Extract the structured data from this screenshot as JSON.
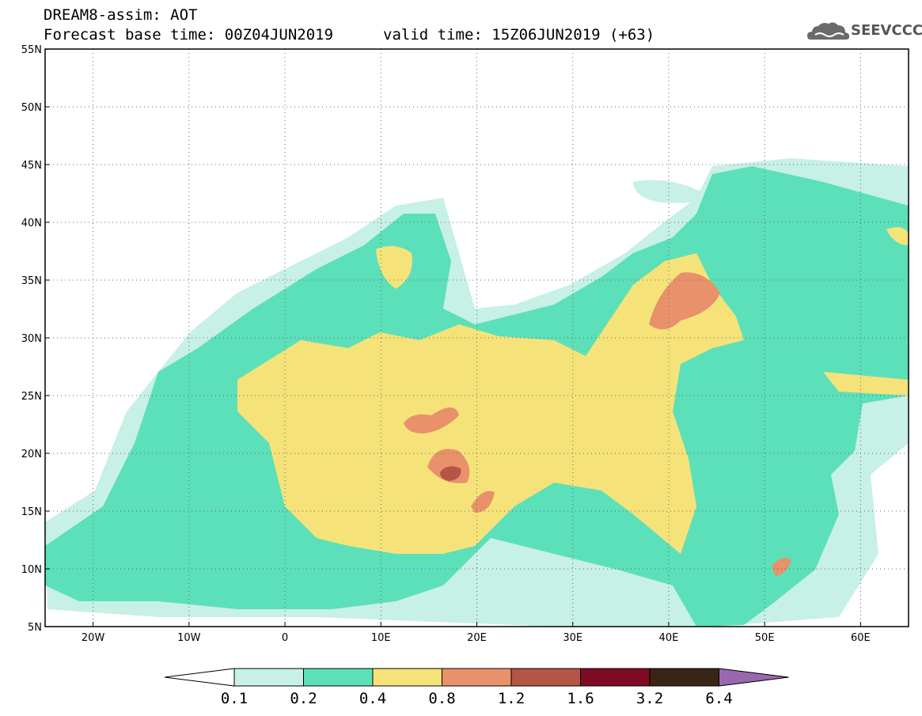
{
  "header": {
    "line1": "DREAM8-assim: AOT",
    "base_time": "Forecast base time: 00Z04JUN2019",
    "valid_time": "valid time: 15Z06JUN2019 (+63)"
  },
  "logo": {
    "text": "SEEVCCC",
    "icon": "cloud-icon"
  },
  "map": {
    "lon_range": [
      -25,
      65
    ],
    "lat_range": [
      5,
      55
    ],
    "lat_ticks": [
      {
        "value": 55,
        "label": "55N"
      },
      {
        "value": 50,
        "label": "50N"
      },
      {
        "value": 45,
        "label": "45N"
      },
      {
        "value": 40,
        "label": "40N"
      },
      {
        "value": 35,
        "label": "35N"
      },
      {
        "value": 30,
        "label": "30N"
      },
      {
        "value": 25,
        "label": "25N"
      },
      {
        "value": 20,
        "label": "20N"
      },
      {
        "value": 15,
        "label": "15N"
      },
      {
        "value": 10,
        "label": "10N"
      },
      {
        "value": 5,
        "label": "5N"
      }
    ],
    "lon_ticks": [
      {
        "value": -20,
        "label": "20W"
      },
      {
        "value": -10,
        "label": "10W"
      },
      {
        "value": 0,
        "label": "0"
      },
      {
        "value": 10,
        "label": "10E"
      },
      {
        "value": 20,
        "label": "20E"
      },
      {
        "value": 30,
        "label": "30E"
      },
      {
        "value": 40,
        "label": "40E"
      },
      {
        "value": 50,
        "label": "50E"
      },
      {
        "value": 60,
        "label": "60E"
      }
    ],
    "grid": "dotted"
  },
  "colorbar": {
    "colors": [
      "#c7f0e6",
      "#5ce0b9",
      "#f5e37a",
      "#e8916a",
      "#b45545",
      "#7e0a24",
      "#3a2414",
      "#9a68b0"
    ],
    "under_color": "#ffffff",
    "labels": [
      "0.1",
      "0.2",
      "0.4",
      "0.8",
      "1.2",
      "1.6",
      "3.2",
      "6.4"
    ]
  }
}
